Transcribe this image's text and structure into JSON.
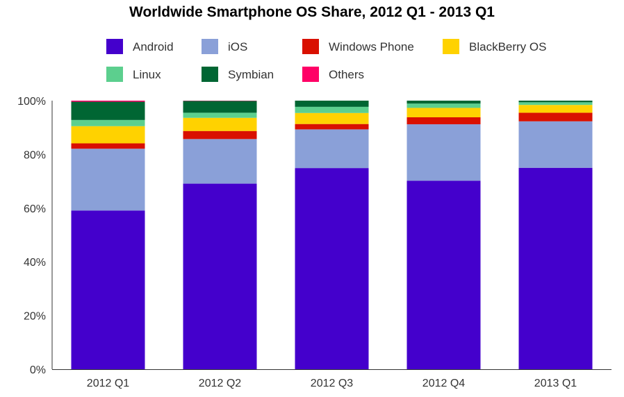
{
  "chart_data": {
    "type": "bar",
    "stacked": true,
    "title": "Worldwide Smartphone OS Share, 2012 Q1 - 2013 Q1",
    "xlabel": "",
    "ylabel": "",
    "ylim": [
      0,
      100
    ],
    "y_ticks": [
      "0%",
      "20%",
      "40%",
      "60%",
      "80%",
      "100%"
    ],
    "y_tick_values": [
      0,
      20,
      40,
      60,
      80,
      100
    ],
    "grid": false,
    "legend_position": "top",
    "categories": [
      "2012 Q1",
      "2012 Q2",
      "2012 Q3",
      "2012 Q4",
      "2013 Q1"
    ],
    "series": [
      {
        "name": "Android",
        "color": "#4400cc",
        "values": [
          59.1,
          69.1,
          74.9,
          70.2,
          75.0
        ]
      },
      {
        "name": "iOS",
        "color": "#8aa0d8",
        "values": [
          23.0,
          16.6,
          14.4,
          21.0,
          17.3
        ]
      },
      {
        "name": "Windows Phone",
        "color": "#d91000",
        "values": [
          2.0,
          3.0,
          2.0,
          2.6,
          3.2
        ]
      },
      {
        "name": "BlackBerry OS",
        "color": "#ffd200",
        "values": [
          6.4,
          4.9,
          4.1,
          3.5,
          2.9
        ]
      },
      {
        "name": "Linux",
        "color": "#5ccf8e",
        "values": [
          2.3,
          1.9,
          2.3,
          1.6,
          1.0
        ]
      },
      {
        "name": "Symbian",
        "color": "#006633",
        "values": [
          6.8,
          4.4,
          2.3,
          1.1,
          0.6
        ]
      },
      {
        "name": "Others",
        "color": "#ff0066",
        "values": [
          0.4,
          0.1,
          0.0,
          0.0,
          0.0
        ]
      }
    ]
  }
}
